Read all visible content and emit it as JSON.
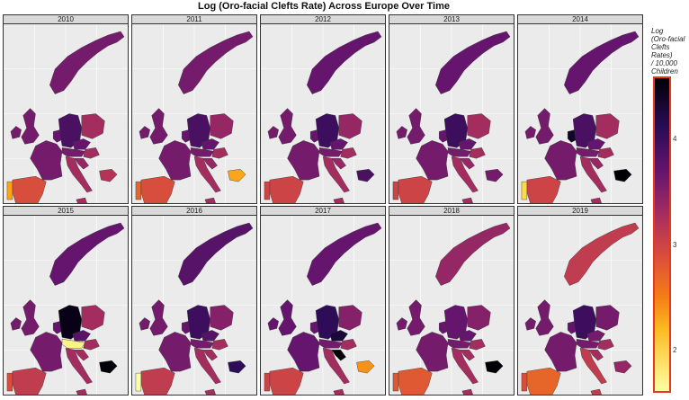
{
  "title": "Log (Oro-facial Clefts Rate) Across Europe Over Time",
  "legend": {
    "title": [
      "Log",
      "(Oro-facial",
      "Clefts",
      "Rates)",
      "/ 10,000",
      "Children"
    ],
    "ticks": [
      "4",
      "3",
      "2"
    ],
    "tick_values": [
      4,
      3,
      2
    ],
    "range": [
      1.6,
      4.6
    ],
    "palette": "inferno"
  },
  "panels": [
    {
      "year": "2010",
      "values": {
        "norway": 3.6,
        "uk_ireland": 3.6,
        "germany": 3.9,
        "poland": 3.3,
        "france": 3.6,
        "italy": 3.3,
        "spain": 2.9,
        "portugal": 2.3,
        "bulgaria": 3.2,
        "czech": 3.7,
        "austria": 3.6,
        "hungary": 3.3,
        "croatia": 3.4,
        "benelux": 3.7
      }
    },
    {
      "year": "2011",
      "values": {
        "norway": 3.6,
        "uk_ireland": 3.6,
        "germany": 3.9,
        "poland": 3.4,
        "france": 3.6,
        "italy": 3.3,
        "spain": 2.9,
        "portugal": 2.7,
        "bulgaria": 2.3,
        "czech": 3.7,
        "austria": 3.6,
        "hungary": 3.3,
        "croatia": 3.4,
        "benelux": 3.7
      }
    },
    {
      "year": "2012",
      "values": {
        "norway": 3.7,
        "uk_ireland": 3.6,
        "germany": 4.0,
        "poland": 3.4,
        "france": 3.6,
        "italy": 3.3,
        "spain": 3.0,
        "portugal": 3.0,
        "bulgaria": 3.9,
        "czech": 3.7,
        "austria": 3.6,
        "hungary": 3.3,
        "croatia": 3.4,
        "benelux": 3.7
      }
    },
    {
      "year": "2013",
      "values": {
        "norway": 3.7,
        "uk_ireland": 3.6,
        "germany": 4.0,
        "poland": 3.3,
        "france": 3.6,
        "italy": 3.3,
        "spain": 3.0,
        "portugal": 3.0,
        "bulgaria": 3.6,
        "czech": 3.7,
        "austria": 3.6,
        "hungary": 3.3,
        "croatia": 3.4,
        "benelux": 3.7
      }
    },
    {
      "year": "2014",
      "values": {
        "norway": 3.7,
        "uk_ireland": 3.6,
        "germany": 3.9,
        "poland": 3.3,
        "france": 3.6,
        "italy": 3.3,
        "spain": 3.0,
        "portugal": 1.9,
        "bulgaria": 4.6,
        "czech": 3.7,
        "austria": 3.6,
        "hungary": 3.3,
        "croatia": 3.4,
        "benelux": 4.4
      }
    },
    {
      "year": "2015",
      "values": {
        "norway": 3.7,
        "uk_ireland": 3.6,
        "germany": 4.5,
        "poland": 3.3,
        "france": 3.6,
        "italy": 3.3,
        "spain": 3.1,
        "portugal": 2.9,
        "bulgaria": 4.6,
        "czech": 3.8,
        "austria": 1.7,
        "hungary": 3.3,
        "croatia": 3.3,
        "benelux": 3.7
      }
    },
    {
      "year": "2016",
      "values": {
        "norway": 3.8,
        "uk_ireland": 3.6,
        "germany": 4.0,
        "poland": 3.5,
        "france": 3.6,
        "italy": 3.3,
        "spain": 3.1,
        "portugal": 1.6,
        "bulgaria": 4.1,
        "czech": 3.8,
        "austria": 3.6,
        "hungary": 3.3,
        "croatia": 3.3,
        "benelux": 3.7
      }
    },
    {
      "year": "2017",
      "values": {
        "norway": 3.7,
        "uk_ireland": 3.7,
        "germany": 4.1,
        "poland": 3.5,
        "france": 3.7,
        "italy": 3.3,
        "spain": 3.0,
        "portugal": 3.0,
        "bulgaria": 2.4,
        "czech": 4.3,
        "austria": 3.6,
        "hungary": 3.3,
        "croatia": 4.6,
        "benelux": 3.7
      }
    },
    {
      "year": "2018",
      "values": {
        "norway": 3.4,
        "uk_ireland": 3.6,
        "germany": 3.7,
        "poland": 3.5,
        "france": 3.6,
        "italy": 3.3,
        "spain": 2.8,
        "portugal": 2.8,
        "bulgaria": 4.6,
        "czech": 3.7,
        "austria": 3.6,
        "hungary": 3.3,
        "croatia": 3.3,
        "benelux": 3.7
      }
    },
    {
      "year": "2019",
      "values": {
        "norway": 3.1,
        "uk_ireland": 3.6,
        "germany": 4.0,
        "poland": 3.6,
        "france": 3.6,
        "italy": 3.1,
        "spain": 2.7,
        "portugal": 2.9,
        "bulgaria": 3.4,
        "czech": 3.6,
        "austria": 3.6,
        "hungary": 3.3,
        "croatia": 3.3,
        "benelux": 3.7
      }
    }
  ]
}
